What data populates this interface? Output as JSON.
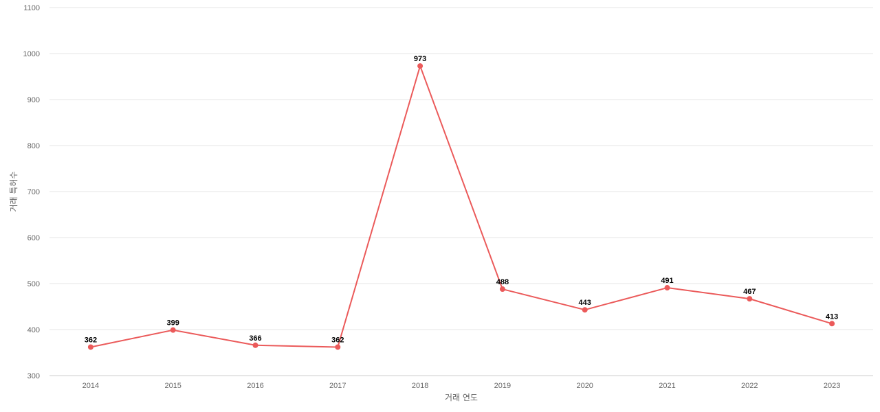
{
  "chart_data": {
    "type": "line",
    "title": "",
    "xlabel": "거래 연도",
    "ylabel": "거래 특허수",
    "categories": [
      "2014",
      "2015",
      "2016",
      "2017",
      "2018",
      "2019",
      "2020",
      "2021",
      "2022",
      "2023"
    ],
    "series": [
      {
        "values": [
          362,
          399,
          366,
          362,
          973,
          488,
          443,
          491,
          467,
          413
        ],
        "color": "#eb5a5a"
      }
    ],
    "ylim": [
      300,
      1100
    ],
    "yticks": [
      300,
      400,
      500,
      600,
      700,
      800,
      900,
      1000,
      1100
    ],
    "grid": true,
    "data_labels": true
  }
}
